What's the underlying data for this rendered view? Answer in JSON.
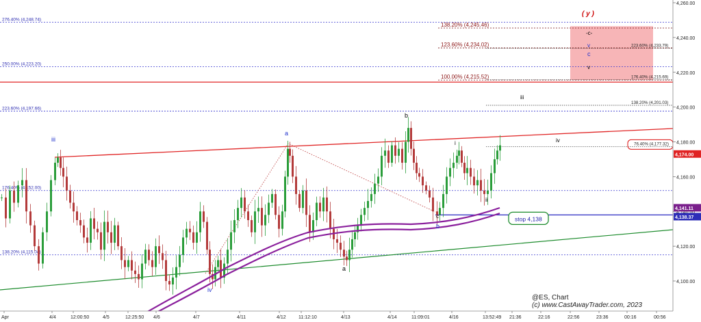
{
  "chart_data": {
    "type": "candlestick",
    "title": "@ES, Chart",
    "credit": "(c) www.CastAwayTrader.com, 2023",
    "y_range": [
      4088,
      4262
    ],
    "y_ticks": [
      "4,260.00",
      "4,240.00",
      "4,220.00",
      "4,200.00",
      "4,180.00",
      "4,160.00",
      "4,140.00",
      "4,120.00",
      "4,100.00"
    ],
    "x_ticks": [
      "Apr",
      "4/4",
      "12:00:50",
      "4/5",
      "12:25:50",
      "4/6",
      "4/7",
      "4/11",
      "4/12",
      "11:12:10",
      "4/13",
      "4/14",
      "11:09:01",
      "4/16",
      "13:52:49",
      "21:36",
      "22:16",
      "22:56",
      "23:36",
      "00:16",
      "00:56"
    ],
    "price_tags": [
      {
        "text": "4,174.00",
        "value": 4174.0,
        "color": "#e02424"
      },
      {
        "text": "4,141.11",
        "value": 4141.11,
        "color": "#7a1f8c"
      },
      {
        "text": "4,138.37",
        "value": 4138.37,
        "color": "#2e2eb8"
      }
    ],
    "left_fib_levels": [
      {
        "text": "276.40% (4,248.74)",
        "value": 4248.74
      },
      {
        "text": "250.00% (4,223.20)",
        "value": 4223.2
      },
      {
        "text": "223.60% (4,197.66)",
        "value": 4197.66
      },
      {
        "text": "176.40% (4,152.00)",
        "value": 4152.0
      },
      {
        "text": "138.20% (4,115.04)",
        "value": 4115.04
      }
    ],
    "right_fib_levels": [
      {
        "text": "138.20% (4,245.46)",
        "value": 4245.46
      },
      {
        "text": "123.60% (4,234.02)",
        "value": 4234.02
      },
      {
        "text": "100.00% (4,215.52)",
        "value": 4215.52
      }
    ],
    "small_fib_levels": [
      {
        "text": "223.60% (4,233.79)",
        "value": 4233.79
      },
      {
        "text": "176.40% (4,215.69)",
        "value": 4215.69
      },
      {
        "text": "138.20% (4,201.03)",
        "value": 4201.03
      },
      {
        "text": "76.40% (4,177.32)",
        "value": 4177.32
      }
    ],
    "stop_label": "stop 4,138",
    "stop_level": 4138,
    "target_zone": [
      4215.5,
      4246.5
    ],
    "wave_labels": [
      {
        "text": "( y )",
        "color": "#cc0000"
      },
      {
        "text": "-c-",
        "color": "#000000"
      },
      {
        "text": "v",
        "color": "#2233cc"
      },
      {
        "text": "c",
        "color": "#2233cc"
      },
      {
        "text": "v",
        "color": "#000000"
      },
      {
        "text": "iii",
        "color": "#000000"
      },
      {
        "text": "iv",
        "color": "#000000"
      },
      {
        "text": "iii",
        "color": "#2233cc"
      },
      {
        "text": "a",
        "color": "#2233cc"
      },
      {
        "text": "b",
        "color": "#000000"
      },
      {
        "text": "i",
        "color": "#000000"
      },
      {
        "text": "ii",
        "color": "#000000"
      },
      {
        "text": "c",
        "color": "#000000"
      },
      {
        "text": "b",
        "color": "#2233cc"
      },
      {
        "text": "a",
        "color": "#000000"
      },
      {
        "text": "iv",
        "color": "#2233cc"
      }
    ],
    "price_path": [
      [
        0,
        4148
      ],
      [
        6,
        4136
      ],
      [
        12,
        4152
      ],
      [
        18,
        4145
      ],
      [
        24,
        4155
      ],
      [
        30,
        4158
      ],
      [
        36,
        4140
      ],
      [
        42,
        4132
      ],
      [
        48,
        4120
      ],
      [
        54,
        4110
      ],
      [
        60,
        4128
      ],
      [
        66,
        4140
      ],
      [
        72,
        4158
      ],
      [
        78,
        4168
      ],
      [
        82,
        4171
      ],
      [
        86,
        4165
      ],
      [
        90,
        4160
      ],
      [
        95,
        4152
      ],
      [
        100,
        4145
      ],
      [
        105,
        4140
      ],
      [
        110,
        4135
      ],
      [
        115,
        4132
      ],
      [
        120,
        4125
      ],
      [
        125,
        4122
      ],
      [
        130,
        4136
      ],
      [
        135,
        4130
      ],
      [
        140,
        4128
      ],
      [
        145,
        4118
      ],
      [
        150,
        4134
      ],
      [
        155,
        4128
      ],
      [
        160,
        4122
      ],
      [
        165,
        4132
      ],
      [
        170,
        4120
      ],
      [
        175,
        4112
      ],
      [
        180,
        4108
      ],
      [
        185,
        4112
      ],
      [
        190,
        4106
      ],
      [
        195,
        4104
      ],
      [
        200,
        4101
      ],
      [
        205,
        4110
      ],
      [
        210,
        4118
      ],
      [
        215,
        4112
      ],
      [
        220,
        4108
      ],
      [
        225,
        4120
      ],
      [
        230,
        4116
      ],
      [
        235,
        4112
      ],
      [
        240,
        4100
      ],
      [
        245,
        4098
      ],
      [
        250,
        4102
      ],
      [
        255,
        4108
      ],
      [
        260,
        4115
      ],
      [
        265,
        4125
      ],
      [
        270,
        4130
      ],
      [
        275,
        4128
      ],
      [
        280,
        4122
      ],
      [
        285,
        4128
      ],
      [
        290,
        4140
      ],
      [
        295,
        4134
      ],
      [
        300,
        4118
      ],
      [
        304,
        4104
      ],
      [
        308,
        4101
      ],
      [
        312,
        4108
      ],
      [
        316,
        4112
      ],
      [
        320,
        4102
      ],
      [
        325,
        4110
      ],
      [
        330,
        4118
      ],
      [
        335,
        4128
      ],
      [
        340,
        4135
      ],
      [
        345,
        4142
      ],
      [
        350,
        4148
      ],
      [
        355,
        4140
      ],
      [
        360,
        4135
      ],
      [
        365,
        4128
      ],
      [
        370,
        4140
      ],
      [
        375,
        4142
      ],
      [
        380,
        4132
      ],
      [
        385,
        4138
      ],
      [
        390,
        4145
      ],
      [
        395,
        4150
      ],
      [
        400,
        4138
      ],
      [
        405,
        4130
      ],
      [
        410,
        4140
      ],
      [
        414,
        4160
      ],
      [
        418,
        4176
      ],
      [
        421,
        4172
      ],
      [
        425,
        4160
      ],
      [
        430,
        4150
      ],
      [
        435,
        4142
      ],
      [
        440,
        4152
      ],
      [
        445,
        4138
      ],
      [
        450,
        4128
      ],
      [
        455,
        4135
      ],
      [
        460,
        4145
      ],
      [
        465,
        4140
      ],
      [
        470,
        4148
      ],
      [
        475,
        4140
      ],
      [
        480,
        4130
      ],
      [
        485,
        4124
      ],
      [
        490,
        4122
      ],
      [
        495,
        4118
      ],
      [
        500,
        4114
      ],
      [
        504,
        4112
      ],
      [
        508,
        4118
      ],
      [
        512,
        4124
      ],
      [
        516,
        4128
      ],
      [
        520,
        4132
      ],
      [
        525,
        4138
      ],
      [
        530,
        4142
      ],
      [
        535,
        4146
      ],
      [
        540,
        4150
      ],
      [
        545,
        4156
      ],
      [
        550,
        4160
      ],
      [
        555,
        4172
      ],
      [
        560,
        4175
      ],
      [
        565,
        4168
      ],
      [
        570,
        4178
      ],
      [
        575,
        4172
      ],
      [
        580,
        4176
      ],
      [
        585,
        4168
      ],
      [
        590,
        4180
      ],
      [
        594,
        4188
      ],
      [
        598,
        4176
      ],
      [
        602,
        4168
      ],
      [
        606,
        4162
      ],
      [
        610,
        4160
      ],
      [
        615,
        4155
      ],
      [
        620,
        4152
      ],
      [
        625,
        4148
      ],
      [
        630,
        4140
      ],
      [
        636,
        4138
      ],
      [
        640,
        4142
      ],
      [
        645,
        4150
      ],
      [
        650,
        4160
      ],
      [
        655,
        4165
      ],
      [
        660,
        4168
      ],
      [
        665,
        4172
      ],
      [
        668,
        4175
      ],
      [
        672,
        4168
      ],
      [
        676,
        4162
      ],
      [
        680,
        4165
      ],
      [
        685,
        4160
      ],
      [
        690,
        4155
      ],
      [
        695,
        4158
      ],
      [
        700,
        4152
      ],
      [
        705,
        4150
      ],
      [
        710,
        4152
      ],
      [
        715,
        4162
      ],
      [
        720,
        4170
      ],
      [
        724,
        4175
      ],
      [
        728,
        4178
      ]
    ]
  }
}
